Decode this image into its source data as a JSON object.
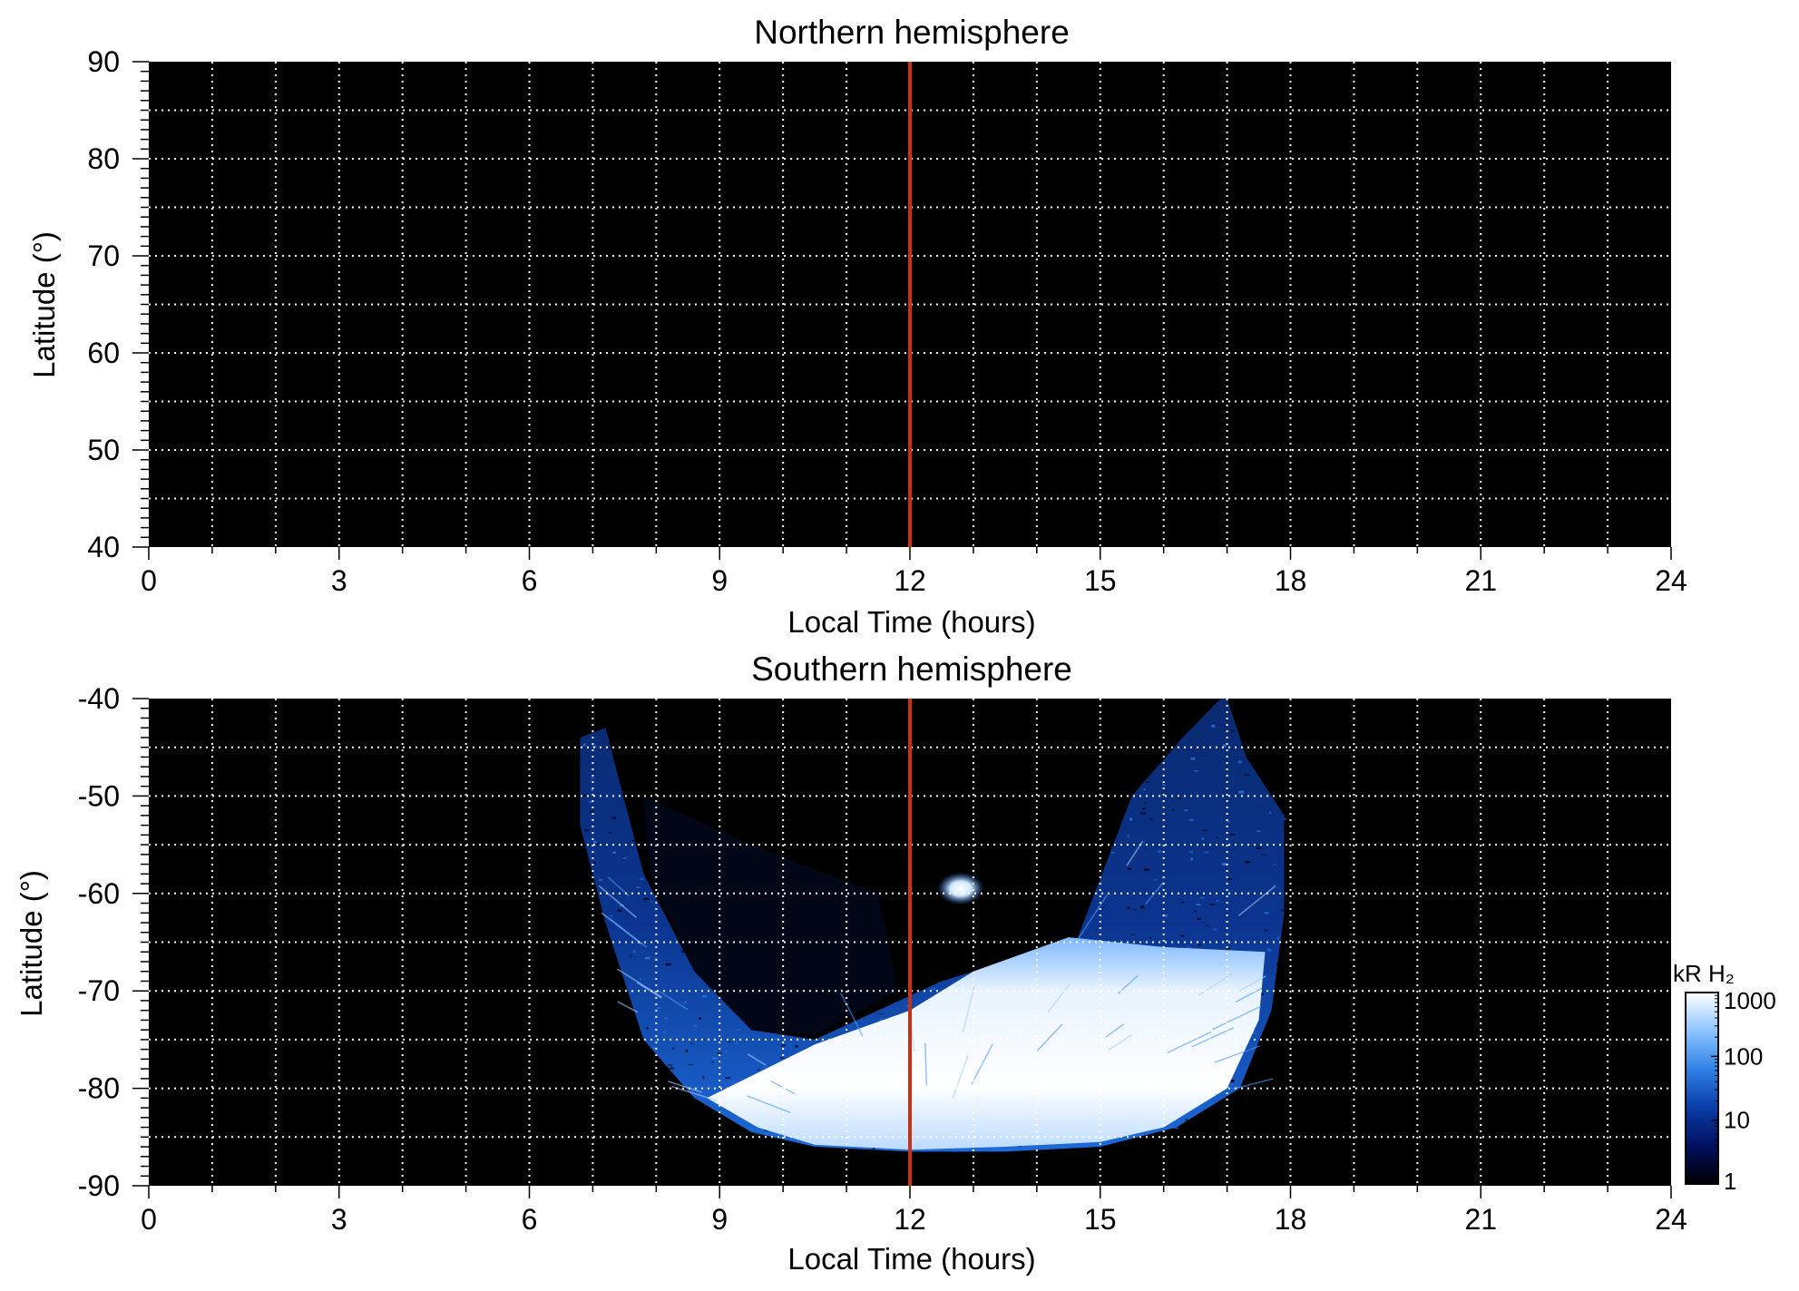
{
  "chart_data": [
    {
      "type": "heatmap",
      "title": "Northern hemisphere",
      "xlabel": "Local Time (hours)",
      "ylabel": "Latitude (°)",
      "xlim": [
        0,
        24
      ],
      "ylim": [
        40,
        90
      ],
      "x_ticks": [
        "0",
        "3",
        "6",
        "9",
        "12",
        "15",
        "18",
        "21",
        "24"
      ],
      "y_ticks": [
        "90",
        "80",
        "70",
        "60",
        "50",
        "40"
      ],
      "grid": true,
      "background": "#000000",
      "vertical_line": {
        "x": 12,
        "color": "#c83214"
      },
      "emission": "none"
    },
    {
      "type": "heatmap",
      "title": "Southern hemisphere",
      "xlabel": "Local Time (hours)",
      "ylabel": "Latitude (°)",
      "xlim": [
        0,
        24
      ],
      "ylim": [
        -90,
        -40
      ],
      "x_ticks": [
        "0",
        "3",
        "6",
        "9",
        "12",
        "15",
        "18",
        "21",
        "24"
      ],
      "y_ticks": [
        "-40",
        "-50",
        "-60",
        "-70",
        "-80",
        "-90"
      ],
      "grid": true,
      "background": "#000000",
      "vertical_line": {
        "x": 12,
        "color": "#c83214"
      },
      "coverage_boundary": [
        [
          6.8,
          -44
        ],
        [
          7.2,
          -43
        ],
        [
          7.8,
          -58
        ],
        [
          8.6,
          -68
        ],
        [
          9.5,
          -74
        ],
        [
          10.5,
          -75
        ],
        [
          11.5,
          -72
        ],
        [
          12.5,
          -69
        ],
        [
          13.5,
          -67
        ],
        [
          14.5,
          -67
        ],
        [
          15.5,
          -50
        ],
        [
          16.3,
          -44
        ],
        [
          16.9,
          -40
        ],
        [
          17.0,
          -40
        ],
        [
          17.3,
          -46
        ],
        [
          17.9,
          -52
        ],
        [
          17.9,
          -62
        ],
        [
          17.7,
          -72
        ],
        [
          17.2,
          -80
        ],
        [
          16.2,
          -84
        ],
        [
          15.0,
          -86
        ],
        [
          13.5,
          -86.5
        ],
        [
          12.0,
          -86.5
        ],
        [
          10.5,
          -86
        ],
        [
          9.5,
          -84.5
        ],
        [
          8.6,
          -81
        ],
        [
          7.8,
          -75
        ],
        [
          7.2,
          -63
        ],
        [
          6.8,
          -53
        ]
      ],
      "bright_oval_boundary": [
        [
          8.8,
          -81
        ],
        [
          10.5,
          -75.5
        ],
        [
          12.0,
          -72
        ],
        [
          13.0,
          -68
        ],
        [
          14.5,
          -64.5
        ],
        [
          16.0,
          -65.5
        ],
        [
          17.6,
          -66
        ],
        [
          17.5,
          -73
        ],
        [
          17.0,
          -80
        ],
        [
          16.0,
          -84
        ],
        [
          15.0,
          -85.5
        ],
        [
          13.5,
          -86
        ],
        [
          12.0,
          -86.3
        ],
        [
          10.5,
          -85.8
        ],
        [
          9.6,
          -84
        ]
      ],
      "bright_spot": {
        "x": 12.8,
        "y": -59.5
      },
      "colorbar": {
        "title": "kR H₂",
        "scale": "log",
        "range": [
          1,
          1000
        ],
        "ticks": [
          "1000",
          "100",
          "10",
          "1"
        ],
        "colors": [
          "#000000",
          "#001060",
          "#0a3ca8",
          "#2f82e6",
          "#8cc4ff",
          "#ffffff"
        ]
      }
    }
  ]
}
